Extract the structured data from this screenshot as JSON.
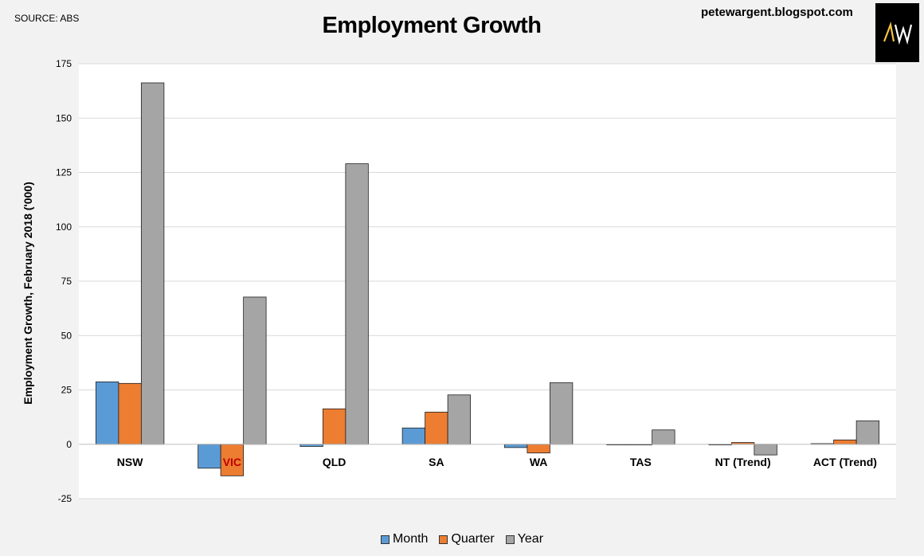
{
  "header": {
    "source": "SOURCE: ABS",
    "blog": "petewargent.blogspot.com",
    "logo_text": "AW"
  },
  "chart_data": {
    "type": "bar",
    "title": "Employment Growth",
    "xlabel": "",
    "ylabel": "Employment Growth, February 2018 ('000)",
    "ylim": [
      -25,
      175
    ],
    "yticks": [
      -25,
      0,
      25,
      50,
      75,
      100,
      125,
      150,
      175
    ],
    "grid": true,
    "legend_position": "bottom",
    "categories": [
      "NSW",
      "VIC",
      "QLD",
      "SA",
      "WA",
      "TAS",
      "NT (Trend)",
      "ACT (Trend)"
    ],
    "series": [
      {
        "name": "Month",
        "color": "#5b9bd5",
        "values": [
          28.7,
          -11.0,
          -1.0,
          7.5,
          -1.5,
          -0.3,
          0.0,
          0.3
        ]
      },
      {
        "name": "Quarter",
        "color": "#ed7d31",
        "values": [
          28.0,
          -14.5,
          16.3,
          14.8,
          -4.0,
          -0.3,
          0.8,
          2.0
        ]
      },
      {
        "name": "Year",
        "color": "#a5a5a5",
        "values": [
          166.2,
          67.7,
          129.0,
          22.7,
          28.3,
          6.6,
          -4.9,
          10.8
        ]
      }
    ],
    "highlight_category": "VIC",
    "highlight_color": "#c00000"
  }
}
